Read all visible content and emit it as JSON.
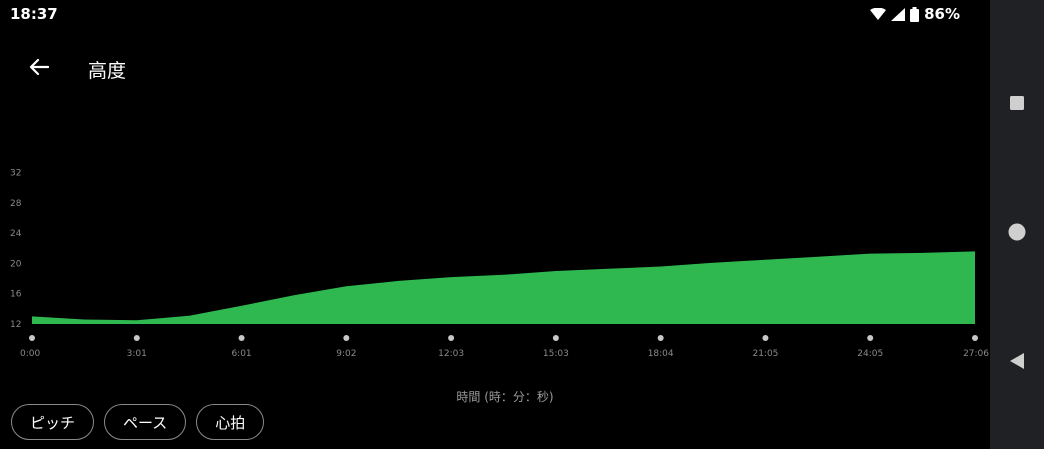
{
  "status_bar": {
    "time": "18:37",
    "battery_percent": "86%",
    "icons": [
      "wifi-icon",
      "signal-icon",
      "battery-icon"
    ]
  },
  "app_bar": {
    "back_icon": "arrow-back-icon",
    "title": "高度"
  },
  "nav_bar": {
    "icons": [
      "recents-square-icon",
      "home-circle-icon",
      "back-triangle-icon"
    ]
  },
  "chart_data": {
    "type": "area",
    "title": "",
    "xlabel": "時間 (時：分：秒)",
    "ylabel": "",
    "x_ticks": [
      "0:00",
      "3:01",
      "6:01",
      "9:02",
      "12:03",
      "15:03",
      "18:04",
      "21:05",
      "24:05",
      "27:06"
    ],
    "y_ticks": [
      12,
      16,
      20,
      24,
      28,
      32
    ],
    "ylim": [
      12,
      35
    ],
    "grid": false,
    "color": "#2fb84f",
    "series": [
      {
        "x": [
          "0:00",
          "1:30",
          "3:01",
          "4:31",
          "6:01",
          "7:32",
          "9:02",
          "10:33",
          "12:03",
          "13:33",
          "15:03",
          "16:34",
          "18:04",
          "19:35",
          "21:05",
          "22:35",
          "24:05",
          "25:36",
          "27:06"
        ],
        "values": [
          13.0,
          12.6,
          12.5,
          13.1,
          14.4,
          15.8,
          17.0,
          17.7,
          18.2,
          18.5,
          19.0,
          19.3,
          19.6,
          20.1,
          20.5,
          20.9,
          21.3,
          21.4,
          21.6
        ]
      }
    ]
  },
  "chips": [
    {
      "label": "ピッチ"
    },
    {
      "label": "ペース"
    },
    {
      "label": "心拍"
    }
  ]
}
